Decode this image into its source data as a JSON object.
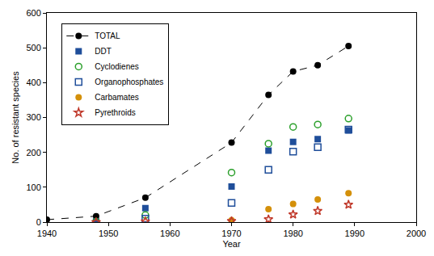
{
  "chart_data": {
    "type": "scatter",
    "x_label": "Year",
    "y_label": "No. of resistant species",
    "xlim": [
      1940,
      2000
    ],
    "xticks": [
      1940,
      1950,
      1960,
      1970,
      1980,
      1990,
      2000
    ],
    "ylim": [
      0,
      600
    ],
    "yticks": [
      0,
      100,
      200,
      300,
      400,
      500,
      600
    ],
    "grid": false,
    "legend": "upper left",
    "series": [
      {
        "name": "TOTAL",
        "color": "#000000",
        "marker": "circle",
        "line_style": "dashed",
        "x": [
          1940,
          1948,
          1956,
          1970,
          1976,
          1980,
          1984,
          1989
        ],
        "values": [
          7,
          17,
          70,
          228,
          365,
          432,
          450,
          505
        ]
      },
      {
        "name": "DDT",
        "color": "#1f4e9a",
        "marker": "square",
        "line_style": "none",
        "x": [
          1948,
          1956,
          1970,
          1976,
          1980,
          1984,
          1989
        ],
        "values": [
          2,
          40,
          102,
          205,
          230,
          238,
          263
        ]
      },
      {
        "name": "Cyclodienes",
        "color": "#2ca02c",
        "marker": "circle-open",
        "line_style": "none",
        "x": [
          1948,
          1956,
          1970,
          1976,
          1980,
          1984,
          1989
        ],
        "values": [
          1,
          20,
          142,
          225,
          273,
          280,
          297
        ]
      },
      {
        "name": "Organophosphates",
        "color": "#1f4e9a",
        "marker": "square-open",
        "line_style": "none",
        "x": [
          1956,
          1970,
          1976,
          1980,
          1984,
          1989
        ],
        "values": [
          10,
          55,
          150,
          202,
          215,
          265
        ]
      },
      {
        "name": "Carbamates",
        "color": "#d4900a",
        "marker": "circle",
        "line_style": "none",
        "x": [
          1970,
          1976,
          1980,
          1984,
          1989
        ],
        "values": [
          5,
          37,
          52,
          65,
          83
        ]
      },
      {
        "name": "Pyrethroids",
        "color": "#c0392b",
        "marker": "star-open",
        "line_style": "none",
        "x": [
          1948,
          1956,
          1970,
          1976,
          1980,
          1984,
          1989
        ],
        "values": [
          0,
          2,
          3,
          8,
          22,
          32,
          50
        ]
      }
    ]
  }
}
